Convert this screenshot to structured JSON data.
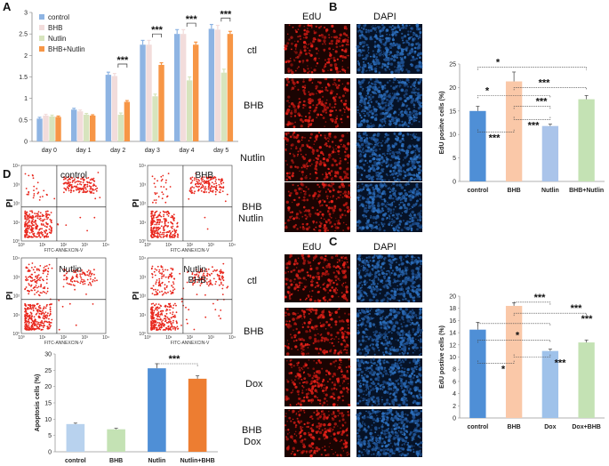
{
  "panels": {
    "A": "A",
    "B": "B",
    "C": "C",
    "D": "D"
  },
  "chart_data": [
    {
      "id": "A",
      "type": "bar",
      "title": "",
      "xlabel": "",
      "ylabel": "",
      "ylim": [
        0,
        3
      ],
      "yticks": [
        "0",
        "0.5",
        "1",
        "1.5",
        "2",
        "2.5",
        "3"
      ],
      "categories": [
        "day 0",
        "day 1",
        "day 2",
        "day 3",
        "day 4",
        "day 5"
      ],
      "legend": "top-left",
      "series": [
        {
          "name": "control",
          "color": "#8eb4e3",
          "values": [
            0.53,
            0.74,
            1.55,
            2.25,
            2.5,
            2.62
          ],
          "errors": [
            0.03,
            0.03,
            0.06,
            0.1,
            0.1,
            0.1
          ]
        },
        {
          "name": "BHB",
          "color": "#f2dcdb",
          "values": [
            0.6,
            0.7,
            1.52,
            2.25,
            2.5,
            2.6
          ],
          "errors": [
            0.03,
            0.03,
            0.06,
            0.1,
            0.1,
            0.1
          ]
        },
        {
          "name": "Nutlin",
          "color": "#d7e4bd",
          "values": [
            0.58,
            0.62,
            0.62,
            1.05,
            1.42,
            1.6
          ],
          "errors": [
            0.03,
            0.03,
            0.04,
            0.05,
            0.08,
            0.08
          ]
        },
        {
          "name": "BHB+Nutlin",
          "color": "#f79646",
          "values": [
            0.57,
            0.6,
            0.92,
            1.78,
            2.25,
            2.5
          ],
          "errors": [
            0.02,
            0.02,
            0.03,
            0.05,
            0.06,
            0.06
          ]
        }
      ],
      "significance": [
        "***",
        "***",
        "***",
        "***"
      ]
    },
    {
      "id": "B",
      "type": "bar",
      "title": "",
      "xlabel": "",
      "ylabel": "EdU positve cells (%)",
      "ylim": [
        0,
        25
      ],
      "yticks": [
        "0",
        "5",
        "10",
        "15",
        "20",
        "25"
      ],
      "categories": [
        "control",
        "BHB",
        "Nutlin",
        "BHB+Nutlin"
      ],
      "colors": [
        "#4f8fd6",
        "#fac8a8",
        "#aac4ea",
        "#c4e2b4"
      ],
      "values": [
        15.0,
        21.3,
        11.8,
        17.5
      ],
      "errors": [
        1.0,
        2.0,
        0.4,
        0.8
      ],
      "significance": [
        "*",
        "***",
        "*",
        "***",
        "***",
        "***"
      ]
    },
    {
      "id": "C",
      "type": "bar",
      "title": "",
      "xlabel": "",
      "ylabel": "EdU postive cells (%)",
      "ylim": [
        0,
        20
      ],
      "yticks": [
        "0",
        "2",
        "4",
        "6",
        "8",
        "10",
        "12",
        "14",
        "16",
        "18",
        "20"
      ],
      "categories": [
        "control",
        "BHB",
        "Dox",
        "Dox+BHB"
      ],
      "colors": [
        "#4f8fd6",
        "#fac8a8",
        "#9fc2ea",
        "#c4e2b4"
      ],
      "values": [
        14.5,
        18.4,
        11.0,
        12.4
      ],
      "errors": [
        1.2,
        0.5,
        0.3,
        0.4
      ],
      "significance": [
        "***",
        "***",
        "***",
        "*",
        "***",
        "*"
      ]
    },
    {
      "id": "D",
      "type": "bar",
      "title": "",
      "xlabel": "",
      "ylabel": "Apoptosis cells (%)",
      "ylim": [
        0,
        30
      ],
      "yticks": [
        "0",
        "5",
        "10",
        "15",
        "20",
        "25",
        "30"
      ],
      "categories": [
        "control",
        "BHB",
        "Nutlin",
        "Nutlin+BHB"
      ],
      "colors": [
        "#b8d2ee",
        "#c4e2b4",
        "#4f8fd6",
        "#ed7d31"
      ],
      "values": [
        8.5,
        6.9,
        25.6,
        22.4
      ],
      "errors": [
        0.3,
        0.3,
        1.4,
        0.9
      ],
      "significance": [
        "***"
      ]
    }
  ],
  "micrographs": {
    "B": {
      "col_labels": [
        "EdU",
        "DAPI"
      ],
      "row_labels": [
        "ctl",
        "BHB",
        "Nutlin",
        "BHB\nNutlin"
      ]
    },
    "C": {
      "col_labels": [
        "EdU",
        "DAPI"
      ],
      "row_labels": [
        "ctl",
        "BHB",
        "Dox",
        "BHB\nDox"
      ]
    }
  },
  "flow": {
    "labels": [
      "control",
      "BHB",
      "Nutlin",
      "Nutlin\nBHB"
    ],
    "y_axis": "PI",
    "x_axis": "FITC-ANNEXCIN-V",
    "ticks": [
      "10⁰",
      "10¹",
      "10²",
      "10³",
      "10⁴"
    ]
  }
}
